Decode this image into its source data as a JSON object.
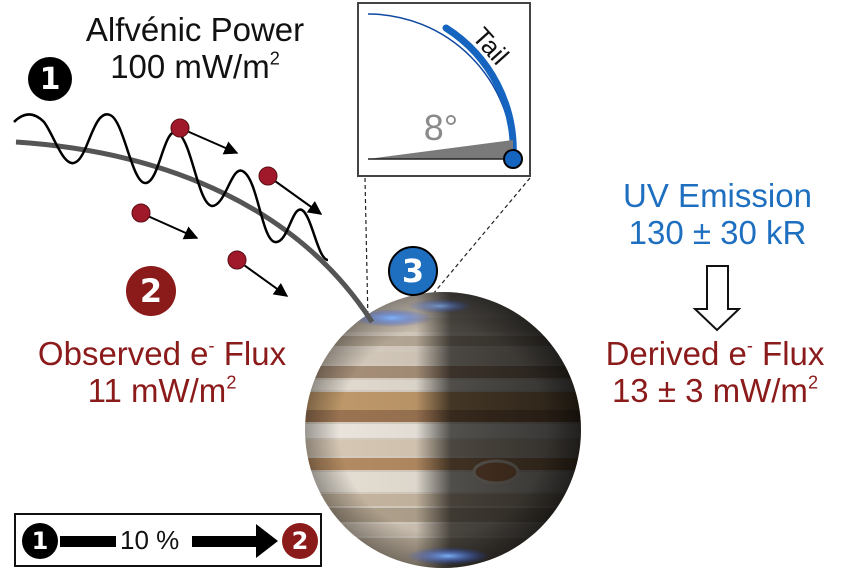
{
  "alfvenic": {
    "title": "Alfvénic Power",
    "value": "100 mW/m",
    "exp": "2"
  },
  "badges": {
    "one": "1",
    "two": "2",
    "three": "3"
  },
  "observed": {
    "title": "Observed e",
    "sup": "-",
    "title2": " Flux",
    "value": "11 mW/m",
    "exp": "2"
  },
  "uv": {
    "title": "UV Emission",
    "value": "130 ± 30 kR"
  },
  "derived": {
    "title": "Derived e",
    "sup": "-",
    "title2": " Flux",
    "value": "13 ± 3 mW/m",
    "exp": "2"
  },
  "inset": {
    "tail_label": "Tail",
    "angle_label": "8°"
  },
  "legend": {
    "percent": "10 %",
    "from": "1",
    "to": "2"
  },
  "colors": {
    "dark": "#111111",
    "red": "#8b1a1a",
    "blue": "#1f6fc0",
    "particle": "#a0192a"
  }
}
